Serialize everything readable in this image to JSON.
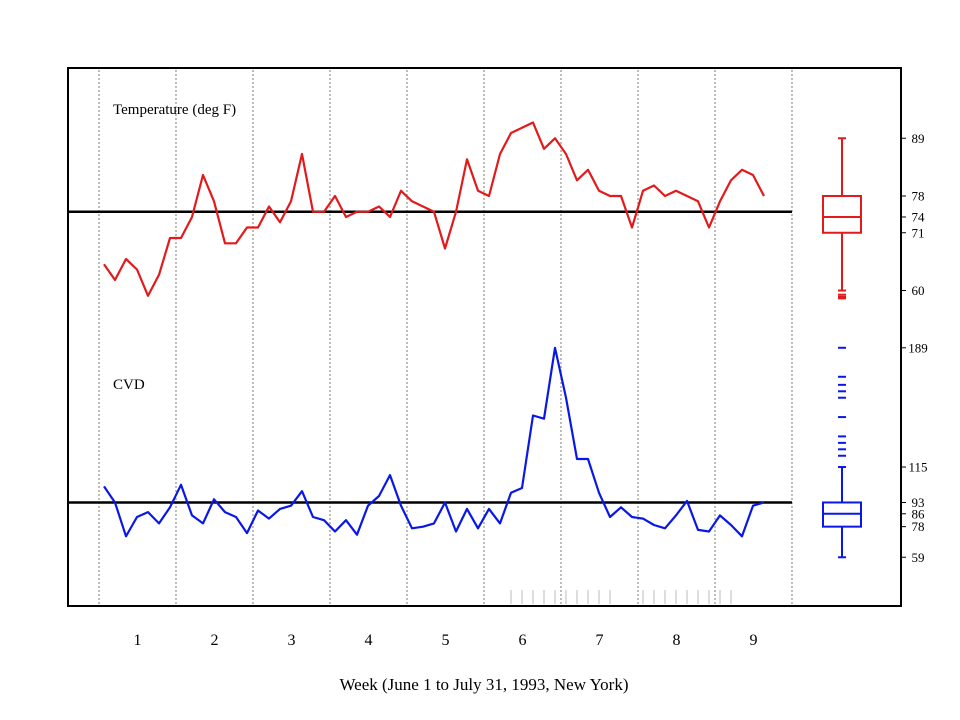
{
  "chart_data": {
    "type": "line",
    "xlabel": "Week (June 1 to July 31, 1993, New York)",
    "week_labels": [
      "1",
      "2",
      "3",
      "4",
      "5",
      "6",
      "7",
      "8",
      "9"
    ],
    "days": 61,
    "panels": [
      {
        "name": "Temperature (deg F)",
        "color": "#e31a1c",
        "reference_line": 75,
        "ylim": [
          54,
          102
        ],
        "tick_labels": [
          "89",
          "78",
          "74",
          "71",
          "60"
        ],
        "tick_values": [
          89,
          78,
          74,
          71,
          60
        ],
        "values": [
          65,
          62,
          66,
          64,
          59,
          63,
          70,
          70,
          74,
          82,
          77,
          69,
          69,
          72,
          72,
          76,
          73,
          77,
          86,
          75,
          75,
          78,
          74,
          75,
          75,
          76,
          74,
          79,
          77,
          76,
          75,
          68,
          75,
          85,
          79,
          78,
          86,
          90,
          91,
          92,
          87,
          89,
          86,
          81,
          83,
          79,
          78,
          78,
          72,
          79,
          80,
          78,
          79,
          78,
          77,
          72,
          77,
          81,
          83,
          82,
          78
        ],
        "boxplot": {
          "min": 60,
          "q1": 71,
          "median": 74,
          "q3": 78,
          "max": 89,
          "outliers": [
            58.5,
            58.8,
            59.2
          ]
        }
      },
      {
        "name": "CVD",
        "color": "#0a18e6",
        "reference_line": 93,
        "ylim": [
          30,
          205
        ],
        "tick_labels": [
          "189",
          "115",
          "93",
          "86",
          "78",
          "59"
        ],
        "tick_values": [
          189,
          115,
          93,
          86,
          78,
          59
        ],
        "values": [
          103,
          93,
          72,
          84,
          87,
          80,
          90,
          104,
          85,
          80,
          95,
          87,
          84,
          74,
          88,
          83,
          89,
          91,
          100,
          84,
          82,
          75,
          82,
          73,
          91,
          97,
          110,
          91,
          77,
          78,
          80,
          93,
          75,
          89,
          77,
          89,
          80,
          99,
          102,
          147,
          145,
          189,
          158,
          120,
          120,
          99,
          84,
          90,
          84,
          83,
          79,
          77,
          85,
          94,
          76,
          75,
          85,
          79,
          72,
          91,
          93
        ],
        "boxplot": {
          "min": 59,
          "q1": 78,
          "median": 86,
          "q3": 93,
          "max": 115,
          "outliers": [
            122,
            126,
            130,
            134,
            146,
            158,
            162,
            166,
            171,
            189
          ]
        }
      }
    ],
    "rug_days": [
      37,
      38,
      39,
      40,
      41,
      42,
      43,
      44,
      45,
      46,
      49,
      50,
      51,
      52,
      53,
      54,
      55,
      56,
      57
    ]
  }
}
